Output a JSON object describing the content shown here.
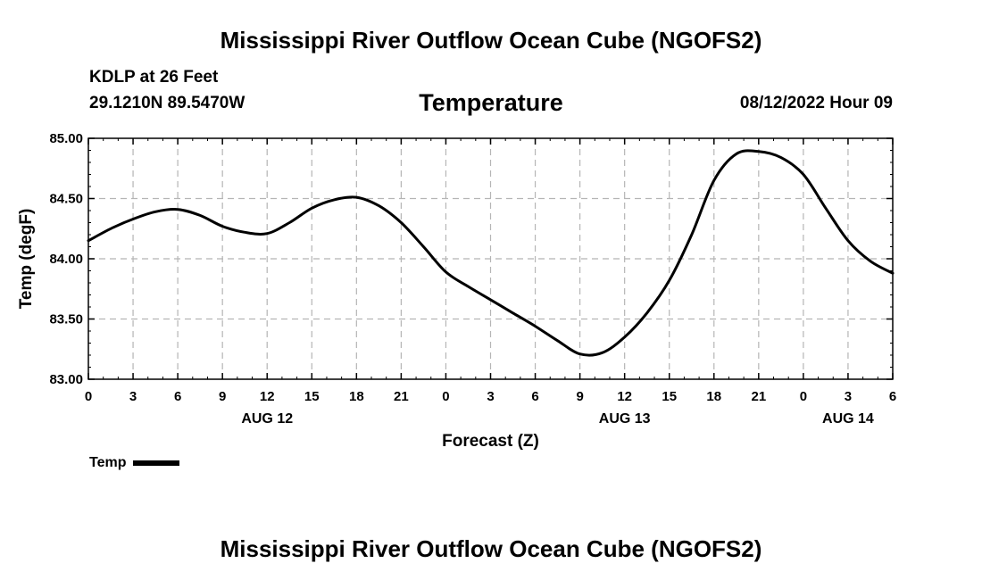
{
  "header": {
    "title": "Mississippi River Outflow Ocean Cube (NGOFS2)",
    "station": "KDLP at 26 Feet",
    "coords": "29.1210N  89.5470W",
    "variable": "Temperature",
    "timestamp": "08/12/2022 Hour 09"
  },
  "footer": {
    "title": "Mississippi River Outflow Ocean Cube (NGOFS2)"
  },
  "legend": {
    "label": "Temp"
  },
  "chart_data": {
    "type": "line",
    "title": "Temperature",
    "xlabel": "Forecast (Z)",
    "ylabel": "Temp (degF)",
    "xlim": [
      0,
      54
    ],
    "ylim": [
      83.0,
      85.0
    ],
    "x_tick_values": [
      0,
      3,
      6,
      9,
      12,
      15,
      18,
      21,
      24,
      27,
      30,
      33,
      36,
      39,
      42,
      45,
      48,
      51,
      54
    ],
    "x_tick_labels": [
      "0",
      "3",
      "6",
      "9",
      "12",
      "15",
      "18",
      "21",
      "0",
      "3",
      "6",
      "9",
      "12",
      "15",
      "18",
      "21",
      "0",
      "3",
      "6"
    ],
    "date_labels": [
      {
        "x": 12,
        "label": "AUG 12"
      },
      {
        "x": 36,
        "label": "AUG 13"
      },
      {
        "x": 51,
        "label": "AUG 14"
      }
    ],
    "y_tick_values": [
      83.0,
      83.5,
      84.0,
      84.5,
      85.0
    ],
    "y_tick_labels": [
      "83.00",
      "83.50",
      "84.00",
      "84.50",
      "85.00"
    ],
    "grid": true,
    "series": [
      {
        "name": "Temp",
        "x": [
          0,
          1.5,
          3,
          4.5,
          6,
          7.5,
          9,
          10.5,
          12,
          13.5,
          15,
          16.5,
          18,
          19.5,
          21,
          22.5,
          24,
          25.5,
          27,
          28.5,
          30,
          31.5,
          33,
          34.5,
          36,
          37.5,
          39,
          40.5,
          42,
          43.5,
          45,
          46.5,
          48,
          49.5,
          51,
          52.5,
          54
        ],
        "y": [
          84.15,
          84.25,
          84.33,
          84.39,
          84.41,
          84.36,
          84.27,
          84.22,
          84.21,
          84.3,
          84.42,
          84.49,
          84.51,
          84.44,
          84.3,
          84.1,
          83.89,
          83.77,
          83.66,
          83.55,
          83.44,
          83.32,
          83.21,
          83.22,
          83.35,
          83.55,
          83.82,
          84.2,
          84.65,
          84.87,
          84.89,
          84.84,
          84.7,
          84.42,
          84.15,
          83.98,
          83.88
        ]
      }
    ]
  }
}
